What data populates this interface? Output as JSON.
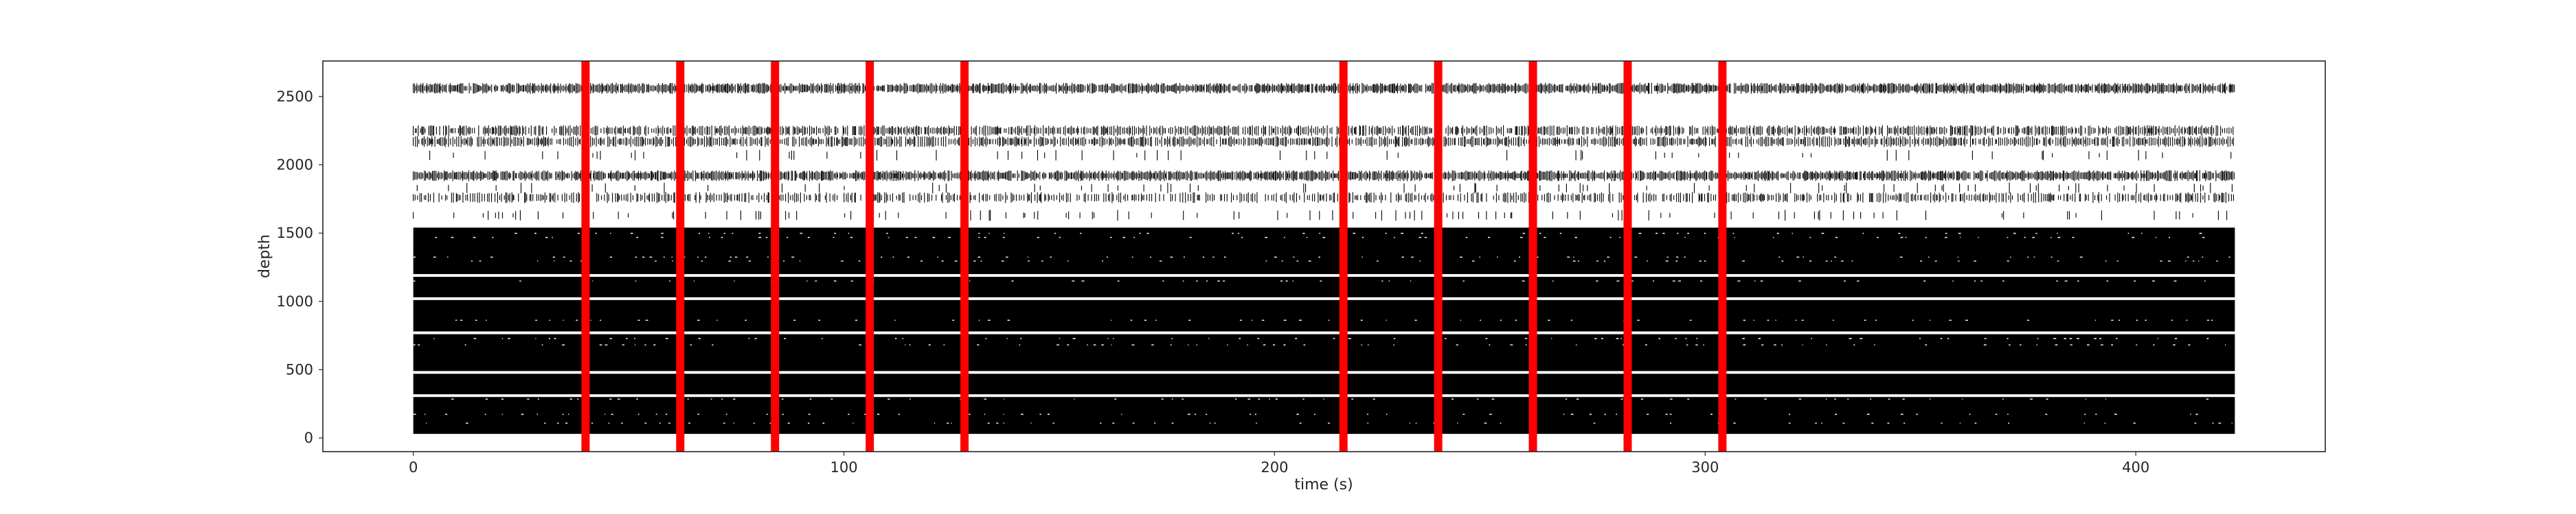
{
  "chart_data": {
    "type": "scatter",
    "title": "",
    "xlabel": "time (s)",
    "ylabel": "depth",
    "xlim": [
      -21,
      444
    ],
    "ylim": [
      -100,
      2760
    ],
    "xticks": [
      0,
      100,
      200,
      300,
      400
    ],
    "yticks": [
      0,
      500,
      1000,
      1500,
      2000,
      2500
    ],
    "xtick_labels": [
      "0",
      "100",
      "200",
      "300",
      "400"
    ],
    "ytick_labels": [
      "0",
      "500",
      "1000",
      "1500",
      "2000",
      "2500"
    ],
    "grid": false,
    "legend": "none",
    "spike_raster": {
      "color": "#000000",
      "time_range": [
        0,
        423
      ],
      "depth_range": [
        30,
        2620
      ],
      "dense_bands": [
        {
          "from": 30,
          "to": 300
        },
        {
          "from": 320,
          "to": 470
        },
        {
          "from": 490,
          "to": 760
        },
        {
          "from": 780,
          "to": 1010
        },
        {
          "from": 1030,
          "to": 1180
        },
        {
          "from": 1200,
          "to": 1540
        }
      ],
      "sparse_bands": [
        {
          "depth": 1630,
          "density": 0.35
        },
        {
          "depth": 1760,
          "density": 0.85
        },
        {
          "depth": 1830,
          "density": 0.3
        },
        {
          "depth": 1920,
          "density": 0.95
        },
        {
          "depth": 2070,
          "density": 0.25
        },
        {
          "depth": 2170,
          "density": 0.9
        },
        {
          "depth": 2250,
          "density": 0.9
        },
        {
          "depth": 2560,
          "density": 0.95
        }
      ]
    },
    "event_markers": {
      "color": "#ff0000",
      "times": [
        40,
        62,
        84,
        106,
        128,
        216,
        238,
        260,
        282,
        304
      ]
    }
  }
}
